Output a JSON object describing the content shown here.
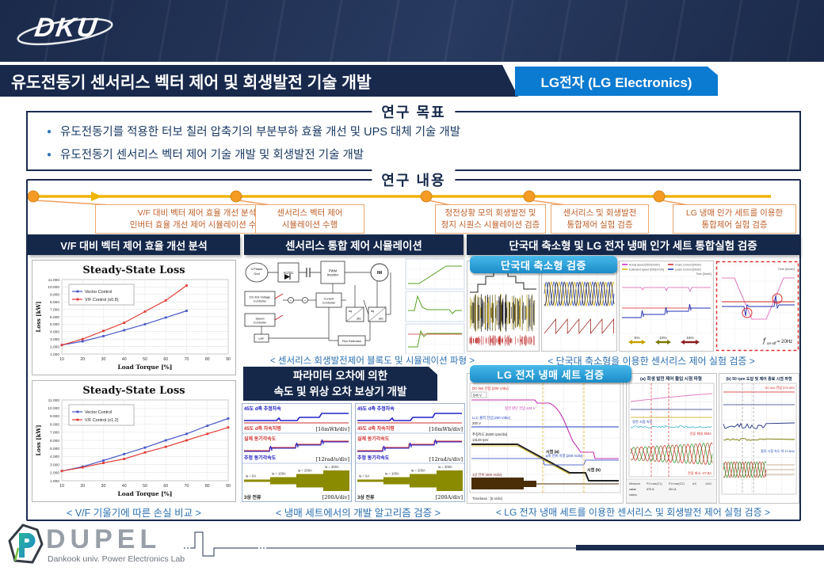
{
  "colors": {
    "navy": "#1b2b4d",
    "header_navy": "#15284a",
    "badge_blue": "#0b7ad1",
    "badge_cyan": "#2da4dd",
    "timeline_gold": "#f0b400",
    "timeline_orange": "#f59a23",
    "milestone_text": "#bf5f28",
    "caption_blue": "#2a6fb0",
    "series_blue": "#4a58c8",
    "series_red": "#e03c34"
  },
  "header": {
    "logo_text": "DKU",
    "title": "유도전동기 센서리스 벡터 제어 및 회생발전 기술 개발",
    "badge": "LG전자 (LG Electronics)"
  },
  "goals": {
    "title": "연구 목표",
    "bullets": [
      "유도전동기를 적용한 터보 칠러 압축기의 부분부하 효율 개선 및 UPS 대체 기술 개발",
      "유도전동기 센서리스 벡터 제어 기술 개발 및 회생발전 기술 개발"
    ]
  },
  "content": {
    "title": "연구 내용"
  },
  "timeline": [
    {
      "line1": "V/F 대비 벡터 제어 효율 개선 분석",
      "line2": "인버터 효율 개선 제어 시뮬레이션 수행"
    },
    {
      "line1": "센서리스 벡터 제어",
      "line2": "시뮬레이션 수행"
    },
    {
      "line1": "정전상황 모의 회생발전 및",
      "line2": "정지 시퀀스 시뮬레이션 검증"
    },
    {
      "line1": "센서리스 및 회생발전",
      "line2": "통합제어 실험 검증"
    },
    {
      "line1": "LG 냉매 인가 세트를 이용한",
      "line2": "통합제어 실험 검증"
    }
  ],
  "col1": {
    "header": "V/F 대비 벡터 제어 효율 개선 분석",
    "caption": "< V/F 기울기에 따른 손실 비교 >"
  },
  "col2": {
    "header": "센서리스 통합 제어 시뮬레이션",
    "caption_top": "< 센서리스 회생발전제어 블록도 및 시뮬레이션 파형 >",
    "sub_line1": "파라미터 오차에 의한",
    "sub_line2": "속도 및 위상 오차 보상기 개발",
    "caption_bottom": "< 냉매 세트에서의 개발 알고리즘 검증 >",
    "wave": {
      "flux_est": "45도 d축 추정자속",
      "flux_ref": "45도 d축 자속지령",
      "flux_div": "[16mWb/div]",
      "spd_act": "실제 동기각속도",
      "spd_est": "추정 동기각속도",
      "spd_div": "[12rad/s/div]",
      "cur": "3상 전류",
      "cur_div": "[200A/div]",
      "cur_marks": [
        "ia = 0A",
        "ia = 100A",
        "ia = 200A",
        "ia = 300A"
      ]
    }
  },
  "col3": {
    "header": "단국대 축소형 및 LG 전자 냉매 인가 세트 통합실험 검증",
    "badge_dku": "단국대 축소형 검증",
    "caption_dku": "< 단국대 축소형을 이용한 센서리스 제어 실험 검증 >",
    "badge_lg": "LG 전자 냉매 세트 검증",
    "caption_lg": "< LG 전자 냉매 세트를 이용한 센서리스 및 회생발전 제어 실험 검증 >",
    "figB_legend": [
      "UphaseCurrent [50A/div]",
      "Estimated Angle [5rad/div]"
    ],
    "figC_legend": [
      "Actual Speed [500rpm/div]",
      "Estimated Speed [500rpm/div]",
      "d-axis Current [5A/div]",
      "q-axis Current [5A/div]"
    ],
    "time_label": "Time [5s/div]",
    "steps": [
      "5%",
      "10%",
      "15%"
    ],
    "fonoff": {
      "sym": "f",
      "sub": "on-off",
      "val": "= 20Hz"
    },
    "scope_full": {
      "title": "회생 발전 제어 전체 파형",
      "labels": {
        "dclink": "DC-link 전압 [200 V/div]",
        "v540": "540 V",
        "vdet": "정전 판단 전압 434 V",
        "llc": "LLC 출력 전압 [200 V/div]",
        "v200": "200 V",
        "spd": "추정속도 [6400 rpm/div]",
        "rpm": "13128 rpm",
        "qcur": "q축 전류 지령 [200 A/div]",
        "pa": "시점 (a)",
        "pb": "시점 (b)",
        "ph1": "1상 전류 [400 A/div]",
        "tb": "Timebase : [5 s/div]"
      }
    },
    "scope_a": {
      "title": "(a) 회생 발전 제어 돌입 시점 파형",
      "labels": {
        "spd": "정전 시점 속도",
        "imax": "전류 최대 393A",
        "imin": "전류 최소 -47.6A"
      },
      "status": "status",
      "measure": [
        {
          "h": "Measure",
          "v": "value"
        },
        {
          "h": "P1:max(C1)",
          "v": "470 A"
        },
        {
          "h": "P2:max(C2)",
          "v": "201 A"
        },
        {
          "h": "ΔX",
          "v": ""
        },
        {
          "h": "1/ΔX",
          "v": ""
        }
      ]
    },
    "scope_b": {
      "title": "(b) 50 rpm 도달 및 제어 종료 시점 파형",
      "labels": {
        "dclink": "DC-link 전압 575.49V",
        "endspd": "종료 시점 속도 약 13.6Hz"
      }
    }
  },
  "diagram": {
    "grid": "3-Phase Grid",
    "acdc": "AC/DC",
    "inv": "PWM Inverter",
    "im": "IM",
    "dclink": "DC-link Voltage Controller",
    "speed": "Speed Controller",
    "current": "Current Controller",
    "lpf": "LPF",
    "flux": "Flux Estimator",
    "dq": "dq",
    "abc": "abc"
  },
  "footer": {
    "logo": "DUPEL",
    "sub": "Dankook univ. Power Electronics Lab"
  },
  "chart_data": [
    {
      "type": "line",
      "title": "Steady-State Loss",
      "xlabel": "Load Torque [%]",
      "ylabel": "Loss [kW]",
      "x": [
        10,
        20,
        30,
        40,
        50,
        60,
        70
      ],
      "xticks": [
        10,
        20,
        30,
        40,
        50,
        60,
        70,
        80,
        90
      ],
      "ylim": [
        1,
        11
      ],
      "ytick_step": 1,
      "ytick_suffix": ".000",
      "grid": true,
      "legend_position": "top-left",
      "series": [
        {
          "name": "Vector Control",
          "color": "#4a58c8",
          "values": [
            2.2,
            2.7,
            3.4,
            4.2,
            5.0,
            5.9,
            6.8
          ]
        },
        {
          "name": "V/F Control (x0.8)",
          "color": "#e03c34",
          "values": [
            2.2,
            3.0,
            4.1,
            5.2,
            6.7,
            8.2,
            10.2
          ]
        }
      ]
    },
    {
      "type": "line",
      "title": "Steady-State Loss",
      "xlabel": "Load Torque [%]",
      "ylabel": "Loss [kW]",
      "x": [
        10,
        20,
        30,
        40,
        50,
        60,
        70,
        80,
        90
      ],
      "xticks": [
        10,
        20,
        30,
        40,
        50,
        60,
        70,
        80,
        90
      ],
      "ylim": [
        1,
        11
      ],
      "ytick_step": 1,
      "ytick_suffix": ".000",
      "grid": true,
      "legend_position": "top-left",
      "series": [
        {
          "name": "Vector Control",
          "color": "#4a58c8",
          "values": [
            2.2,
            2.75,
            3.5,
            4.3,
            5.1,
            6.0,
            6.8,
            7.8,
            8.7
          ]
        },
        {
          "name": "V/F Control (x1.2)",
          "color": "#e03c34",
          "values": [
            2.2,
            2.65,
            3.2,
            3.7,
            4.5,
            5.2,
            6.0,
            6.8,
            7.6
          ]
        }
      ]
    }
  ]
}
